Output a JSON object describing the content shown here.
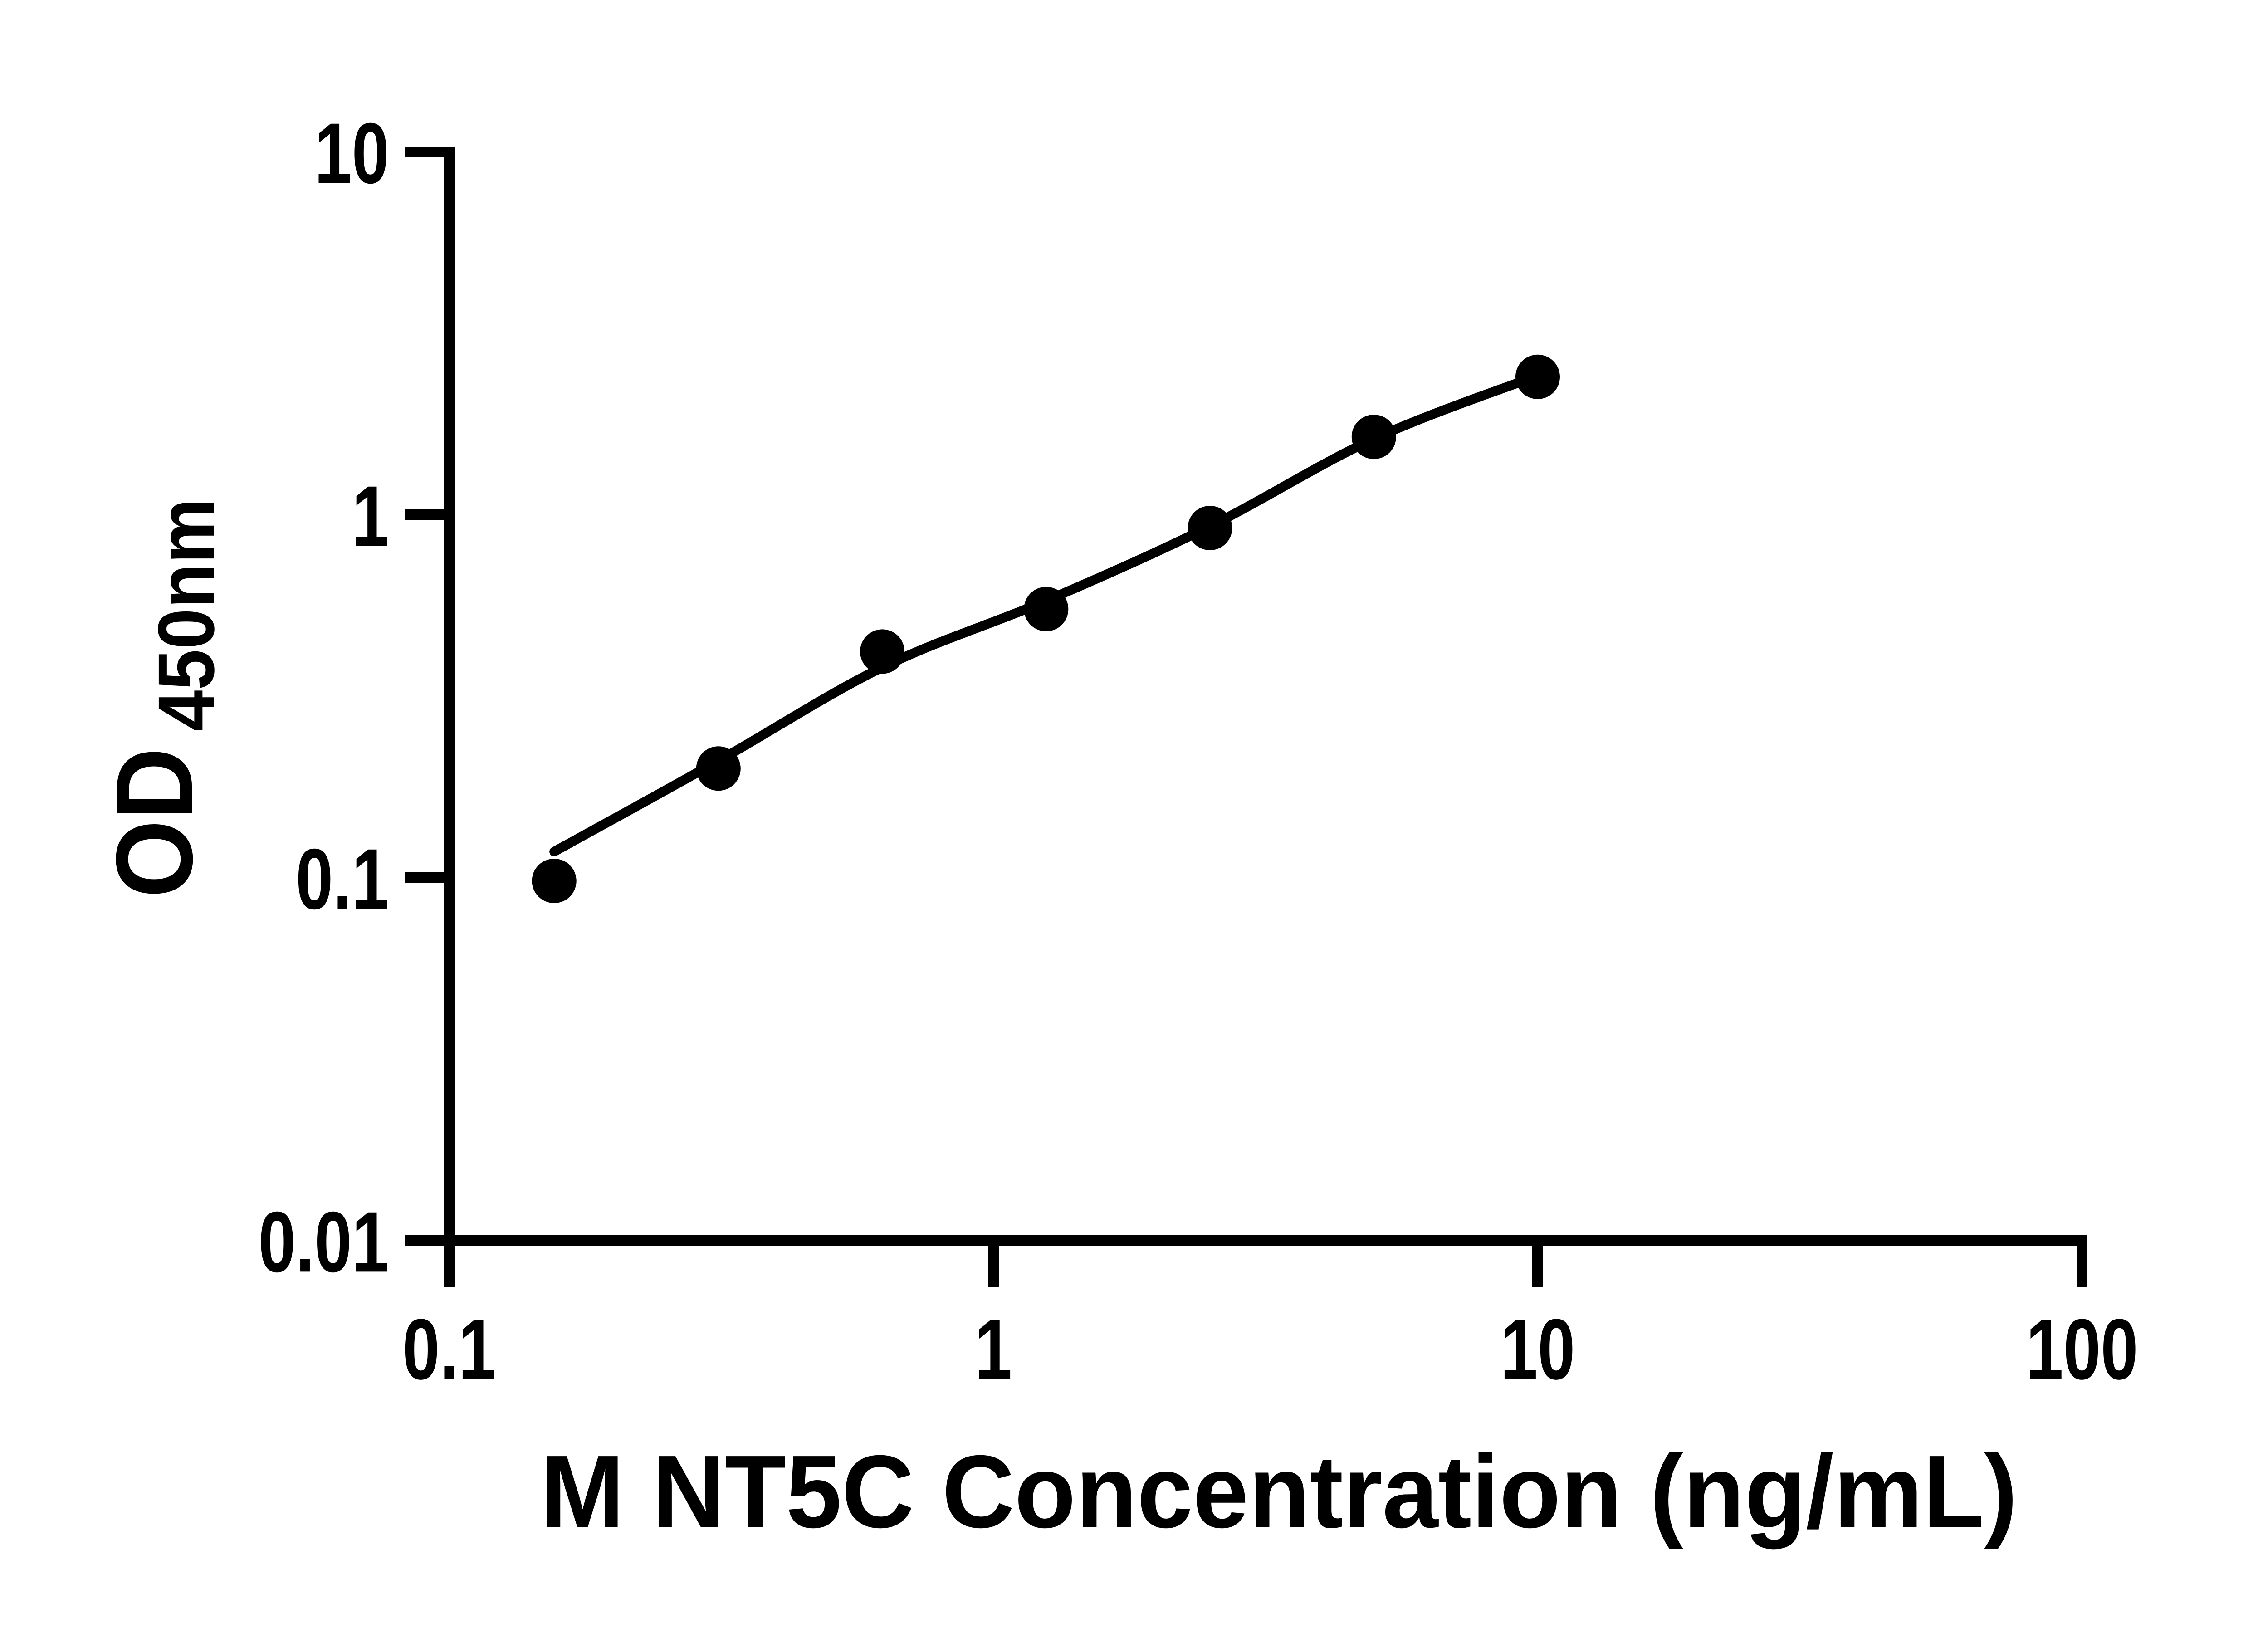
{
  "chart_data": {
    "type": "scatter",
    "title": "",
    "xlabel": "M NT5C Concentration (ng/mL)",
    "ylabel_main": "OD",
    "ylabel_sub": "450nm",
    "x_scale": "log",
    "y_scale": "log",
    "xlim": [
      0.1,
      100
    ],
    "ylim": [
      0.01,
      10
    ],
    "grid": false,
    "legend": null,
    "x_ticks": [
      {
        "value": 0.1,
        "label": "0.1"
      },
      {
        "value": 1,
        "label": "1"
      },
      {
        "value": 10,
        "label": "10"
      },
      {
        "value": 100,
        "label": "100"
      }
    ],
    "y_ticks": [
      {
        "value": 10,
        "label": "10"
      },
      {
        "value": 1,
        "label": "1"
      },
      {
        "value": 0.1,
        "label": "0.1"
      },
      {
        "value": 0.01,
        "label": "0.01"
      }
    ],
    "series": [
      {
        "name": "standard-curve-points",
        "points": [
          {
            "x": 0.156,
            "y": 0.098
          },
          {
            "x": 0.3125,
            "y": 0.2
          },
          {
            "x": 0.625,
            "y": 0.42
          },
          {
            "x": 1.25,
            "y": 0.55
          },
          {
            "x": 2.5,
            "y": 0.92
          },
          {
            "x": 5,
            "y": 1.64
          },
          {
            "x": 10,
            "y": 2.4
          }
        ]
      }
    ],
    "fit_line": [
      {
        "x": 0.156,
        "y": 0.118
      },
      {
        "x": 0.3125,
        "y": 0.21
      },
      {
        "x": 0.625,
        "y": 0.38
      },
      {
        "x": 1.25,
        "y": 0.58
      },
      {
        "x": 2.5,
        "y": 0.93
      },
      {
        "x": 5,
        "y": 1.62
      },
      {
        "x": 10,
        "y": 2.42
      }
    ],
    "colors": {
      "marker": "#000000",
      "line": "#000000",
      "axis": "#000000",
      "text": "#000000",
      "background": "#ffffff"
    }
  }
}
